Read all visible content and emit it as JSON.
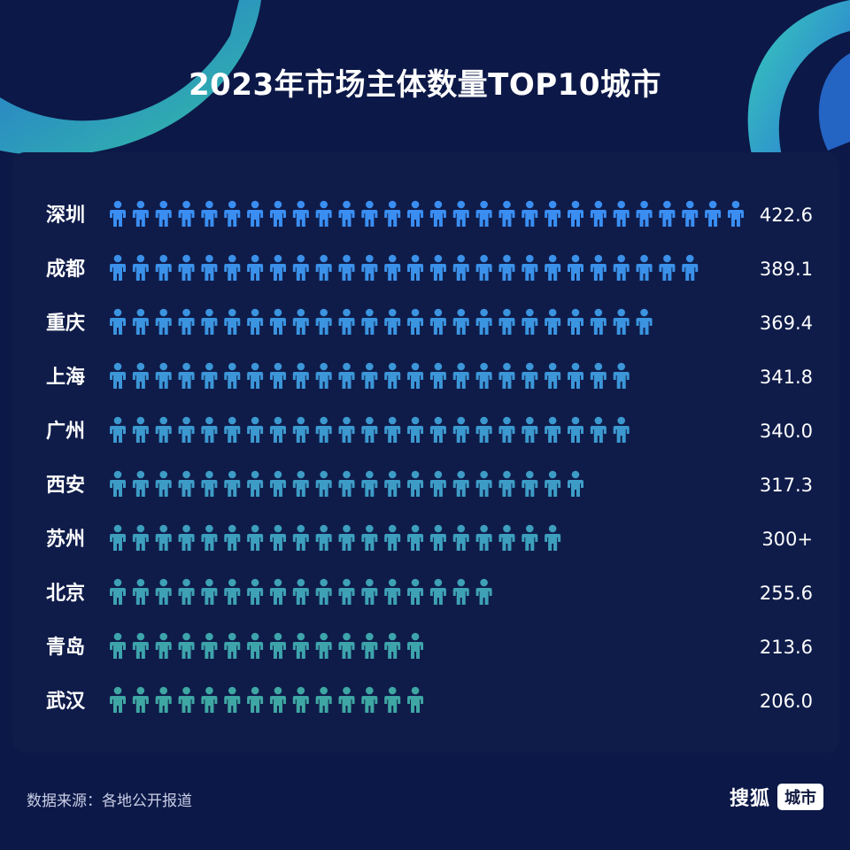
{
  "title": "2023年市场主体数量TOP10城市",
  "source": "数据来源：各地公开报道",
  "brand": {
    "name": "搜狐",
    "tag": "城市"
  },
  "colors": {
    "background": "#0c1847",
    "panel": "#0f1c4a",
    "blue": "#3a8ef2",
    "teal": "#3fa7a3"
  },
  "chart_data": {
    "type": "bar",
    "categories": [
      "深圳",
      "成都",
      "重庆",
      "上海",
      "广州",
      "西安",
      "苏州",
      "北京",
      "青岛",
      "武汉"
    ],
    "values": [
      422.6,
      389.1,
      369.4,
      341.8,
      340.0,
      317.3,
      300,
      255.6,
      213.6,
      206.0
    ],
    "value_labels": [
      "422.6",
      "389.1",
      "369.4",
      "341.8",
      "340.0",
      "317.3",
      "300+",
      "255.6",
      "213.6",
      "206.0"
    ],
    "icon_counts": [
      28,
      26,
      24,
      23,
      23,
      21,
      20,
      17,
      14,
      14
    ],
    "icon": "person-icon",
    "title": "2023年市场主体数量TOP10城市",
    "xlabel": "",
    "ylabel": ""
  }
}
